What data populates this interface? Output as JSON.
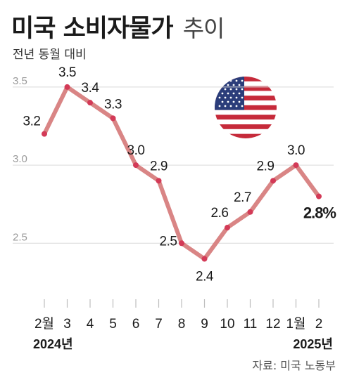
{
  "header": {
    "title_main": "미국 소비자물가",
    "title_suffix": "추이",
    "subtitle": "전년 동월 대비"
  },
  "source": "자료: 미국 노동부",
  "flag_icon": "us-flag-icon",
  "colors": {
    "line": "#d98585",
    "point": "#d33a57",
    "grid": "#d9d9d9",
    "tick_mark": "#bdbdbd"
  },
  "chart_data": {
    "type": "line",
    "title": "미국 소비자물가 추이",
    "ylabel": "전년 동월 대비",
    "categories": [
      "2월",
      "3",
      "4",
      "5",
      "6",
      "7",
      "8",
      "9",
      "10",
      "11",
      "12",
      "1월",
      "2"
    ],
    "year_labels": [
      {
        "index": 0,
        "text": "2024년"
      },
      {
        "index": 11,
        "text": "2025년"
      }
    ],
    "series": [
      {
        "values": [
          3.2,
          3.5,
          3.4,
          3.3,
          3.0,
          2.9,
          2.5,
          2.4,
          2.6,
          2.7,
          2.9,
          3.0,
          2.8
        ],
        "labels": [
          "3.2",
          "3.5",
          "3.4",
          "3.3",
          "3.0",
          "2.9",
          "2.5",
          "2.4",
          "2.6",
          "2.7",
          "2.9",
          "3.0",
          "2.8%"
        ]
      }
    ],
    "yticks": [
      "3.5",
      "3.0",
      "2.5"
    ],
    "ylim": [
      2.2,
      3.63
    ],
    "grid": true,
    "legend": "none"
  }
}
